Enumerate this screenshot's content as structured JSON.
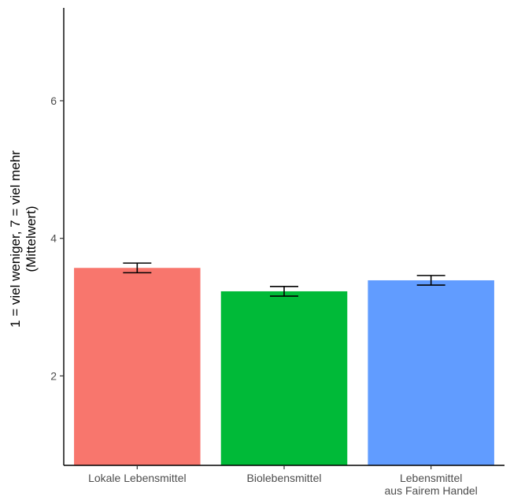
{
  "chart_data": {
    "type": "bar",
    "categories": [
      "Lokale Lebensmittel",
      "Biolebensmittel",
      "Lebensmittel aus Fairem Handel"
    ],
    "category_label_lines": [
      [
        "Lokale Lebensmittel"
      ],
      [
        "Biolebensmittel"
      ],
      [
        "Lebensmittel",
        "aus Fairem Handel"
      ]
    ],
    "values": [
      3.57,
      3.23,
      3.39
    ],
    "error_low": [
      3.5,
      3.16,
      3.32
    ],
    "error_high": [
      3.64,
      3.3,
      3.46
    ],
    "colors": [
      "#f8766d",
      "#00ba38",
      "#619cff"
    ],
    "title": "",
    "xlabel": "",
    "ylabel_lines": [
      "1 = viel weniger, 7 = viel mehr",
      "(Mittelwert)"
    ],
    "ylim": [
      0.7,
      7.35
    ],
    "yticks": [
      2,
      4,
      6
    ],
    "grid": false,
    "legend": "none"
  }
}
